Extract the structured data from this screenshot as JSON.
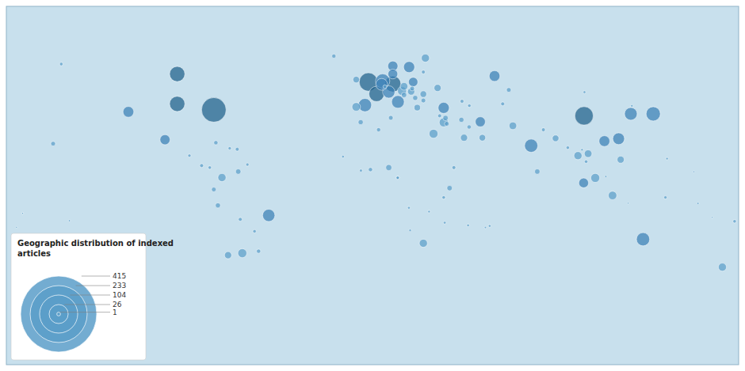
{
  "chart_data": {
    "type": "bubble",
    "title": "Geographic distribution of indexed\narticles",
    "xlim": [
      -180,
      180
    ],
    "ylim": [
      -90,
      90
    ],
    "tick_labels": false,
    "grid": false,
    "color": "#5b9ec9",
    "legend_sizes": [
      415,
      233,
      104,
      26,
      1
    ],
    "x": [
      -78,
      -2,
      104,
      10,
      -96,
      -96,
      2,
      5,
      138,
      -3.7,
      78,
      133,
      12.5,
      127,
      -51,
      8,
      4.5,
      121,
      18,
      35,
      -120,
      60,
      114,
      -102,
      10,
      53,
      10,
      103.8,
      20,
      -64,
      14.5,
      35,
      30,
      109.5,
      -8,
      118,
      -74,
      26,
      101,
      172,
      25,
      15.5,
      69,
      106,
      -71,
      19,
      45,
      122,
      32,
      -8,
      25,
      54,
      90,
      22,
      8,
      -66,
      37.9,
      35.9,
      81,
      15.5,
      -76,
      -5.8,
      21,
      43.7,
      -78,
      -157,
      25,
      9,
      36.5,
      19.5,
      67,
      -56,
      -77,
      3,
      -1,
      -19,
      47.5,
      -65,
      -84,
      40,
      25,
      6.1,
      33,
      44.0,
      64,
      84,
      -66.5,
      -80,
      -153,
      47.6,
      96,
      105,
      178,
      35,
      -58,
      -90,
      144,
      12.4,
      -70.2,
      -61.5,
      12.4,
      -5.7,
      104.2,
      57.6,
      17.9,
      35.5,
      -14.5,
      47,
      144.8,
      18.5,
      27.8,
      103,
      127.5,
      -149,
      55.5,
      160,
      114.7,
      -172,
      167,
      125.7,
      158,
      -175,
      -172
    ],
    "y": [
      38,
      52,
      35,
      51,
      41,
      56,
      46,
      52.5,
      36,
      40.4,
      20,
      -27,
      42,
      36,
      -15,
      47,
      50.8,
      23.5,
      59.5,
      39,
      37,
      55,
      22.3,
      23,
      60,
      32,
      56,
      1.3,
      52,
      -34,
      47.5,
      31.7,
      26,
      3.8,
      39.5,
      -5,
      4,
      64,
      15,
      -41,
      -29,
      49.8,
      30,
      16,
      -35,
      47.2,
      24,
      13,
      49,
      53.2,
      45.9,
      24,
      23.7,
      39.1,
      9,
      7,
      -1.3,
      33.9,
      7,
      45.5,
      -10,
      31.8,
      44,
      33,
      -2,
      21,
      42.7,
      34,
      31,
      48.7,
      48,
      -33,
      21.5,
      28,
      8,
      65,
      29.4,
      -17,
      10,
      9,
      57,
      49.6,
      35,
      42.3,
      41,
      28,
      18.2,
      9,
      61,
      40.1,
      19,
      12,
      -18,
      -6,
      -23,
      15,
      -6,
      3.9,
      18.7,
      10.5,
      3.9,
      7.5,
      46.9,
      -20.3,
      -11.2,
      -18.7,
      14.5,
      -20,
      13.5,
      -22.5,
      -13.1,
      18,
      40,
      -17.7,
      -21.1,
      -9,
      4.5,
      -14,
      -16,
      -8.9,
      6.9,
      -21,
      -14
    ],
    "sizes": [
      415,
      233,
      233,
      180,
      160,
      160,
      160,
      140,
      140,
      120,
      120,
      120,
      110,
      110,
      104,
      104,
      95,
      95,
      85,
      85,
      80,
      80,
      80,
      70,
      70,
      70,
      65,
      65,
      60,
      55,
      55,
      55,
      55,
      55,
      50,
      50,
      45,
      45,
      45,
      45,
      45,
      40,
      40,
      40,
      35,
      35,
      35,
      35,
      35,
      30,
      30,
      30,
      30,
      28,
      26,
      20,
      20,
      20,
      20,
      20,
      18,
      18,
      18,
      18,
      15,
      15,
      15,
      15,
      15,
      15,
      15,
      12,
      12,
      12,
      12,
      12,
      12,
      10,
      10,
      10,
      10,
      10,
      10,
      10,
      10,
      10,
      10,
      8,
      8,
      8,
      8,
      8,
      8,
      8,
      8,
      7,
      7,
      7,
      7,
      7,
      7,
      6,
      5,
      5,
      5,
      5,
      5,
      5,
      4,
      4,
      4,
      4,
      4,
      3,
      3,
      3,
      3,
      2,
      2,
      2,
      2,
      2,
      2
    ],
    "colors": [
      "#1f5f8b",
      "#1f5f8b",
      "#1f5f8b",
      "#1f5f8b",
      "#1f5f8b",
      "#1f5f8b",
      "#1f5f8b",
      "#3a7fb5",
      "#3a7fb5",
      "#3a7fb5",
      "#3a7fb5",
      "#3a7fb5",
      "#3a7fb5",
      "#3a7fb5",
      "#3a7fb5",
      "#3a7fb5",
      "#3a7fb5",
      "#3a7fb5",
      "#3a7fb5",
      "#3a7fb5",
      "#3a7fb5",
      "#3a7fb5",
      "#3a7fb5",
      "#3a7fb5",
      "#3a7fb5",
      "#3a7fb5",
      "#3a7fb5",
      "#3a7fb5",
      "#3a7fb5",
      "#5b9ec9",
      "#5b9ec9",
      "#5b9ec9",
      "#5b9ec9",
      "#5b9ec9",
      "#5b9ec9",
      "#5b9ec9",
      "#5b9ec9",
      "#5b9ec9",
      "#5b9ec9",
      "#5b9ec9",
      "#5b9ec9",
      "#5b9ec9",
      "#5b9ec9",
      "#5b9ec9",
      "#5b9ec9",
      "#5b9ec9",
      "#5b9ec9",
      "#5b9ec9",
      "#5b9ec9",
      "#5b9ec9",
      "#5b9ec9",
      "#5b9ec9",
      "#5b9ec9",
      "#5b9ec9",
      "#5b9ec9",
      "#5b9ec9",
      "#5b9ec9",
      "#5b9ec9",
      "#5b9ec9",
      "#5b9ec9",
      "#5b9ec9",
      "#5b9ec9",
      "#5b9ec9",
      "#5b9ec9",
      "#5b9ec9",
      "#5b9ec9",
      "#5b9ec9",
      "#5b9ec9",
      "#5b9ec9",
      "#5b9ec9",
      "#5b9ec9",
      "#5b9ec9",
      "#5b9ec9",
      "#5b9ec9",
      "#5b9ec9",
      "#5b9ec9",
      "#5b9ec9",
      "#5b9ec9",
      "#5b9ec9",
      "#5b9ec9",
      "#5b9ec9",
      "#5b9ec9",
      "#5b9ec9",
      "#5b9ec9",
      "#5b9ec9",
      "#5b9ec9",
      "#5b9ec9",
      "#5b9ec9",
      "#5b9ec9",
      "#5b9ec9",
      "#5b9ec9",
      "#5b9ec9",
      "#5b9ec9",
      "#5b9ec9",
      "#5b9ec9",
      "#5b9ec9",
      "#5b9ec9",
      "#5b9ec9",
      "#5b9ec9",
      "#5b9ec9",
      "#5b9ec9",
      "#5b9ec9",
      "#5b9ec9",
      "#5b9ec9",
      "#5b9ec9",
      "#5b9ec9",
      "#5b9ec9",
      "#5b9ec9",
      "#5b9ec9",
      "#5b9ec9",
      "#5b9ec9",
      "#5b9ec9",
      "#5b9ec9",
      "#5b9ec9",
      "#5b9ec9",
      "#5b9ec9",
      "#5b9ec9",
      "#5b9ec9",
      "#5b9ec9",
      "#5b9ec9",
      "#5b9ec9",
      "#5b9ec9",
      "#5b9ec9"
    ]
  }
}
